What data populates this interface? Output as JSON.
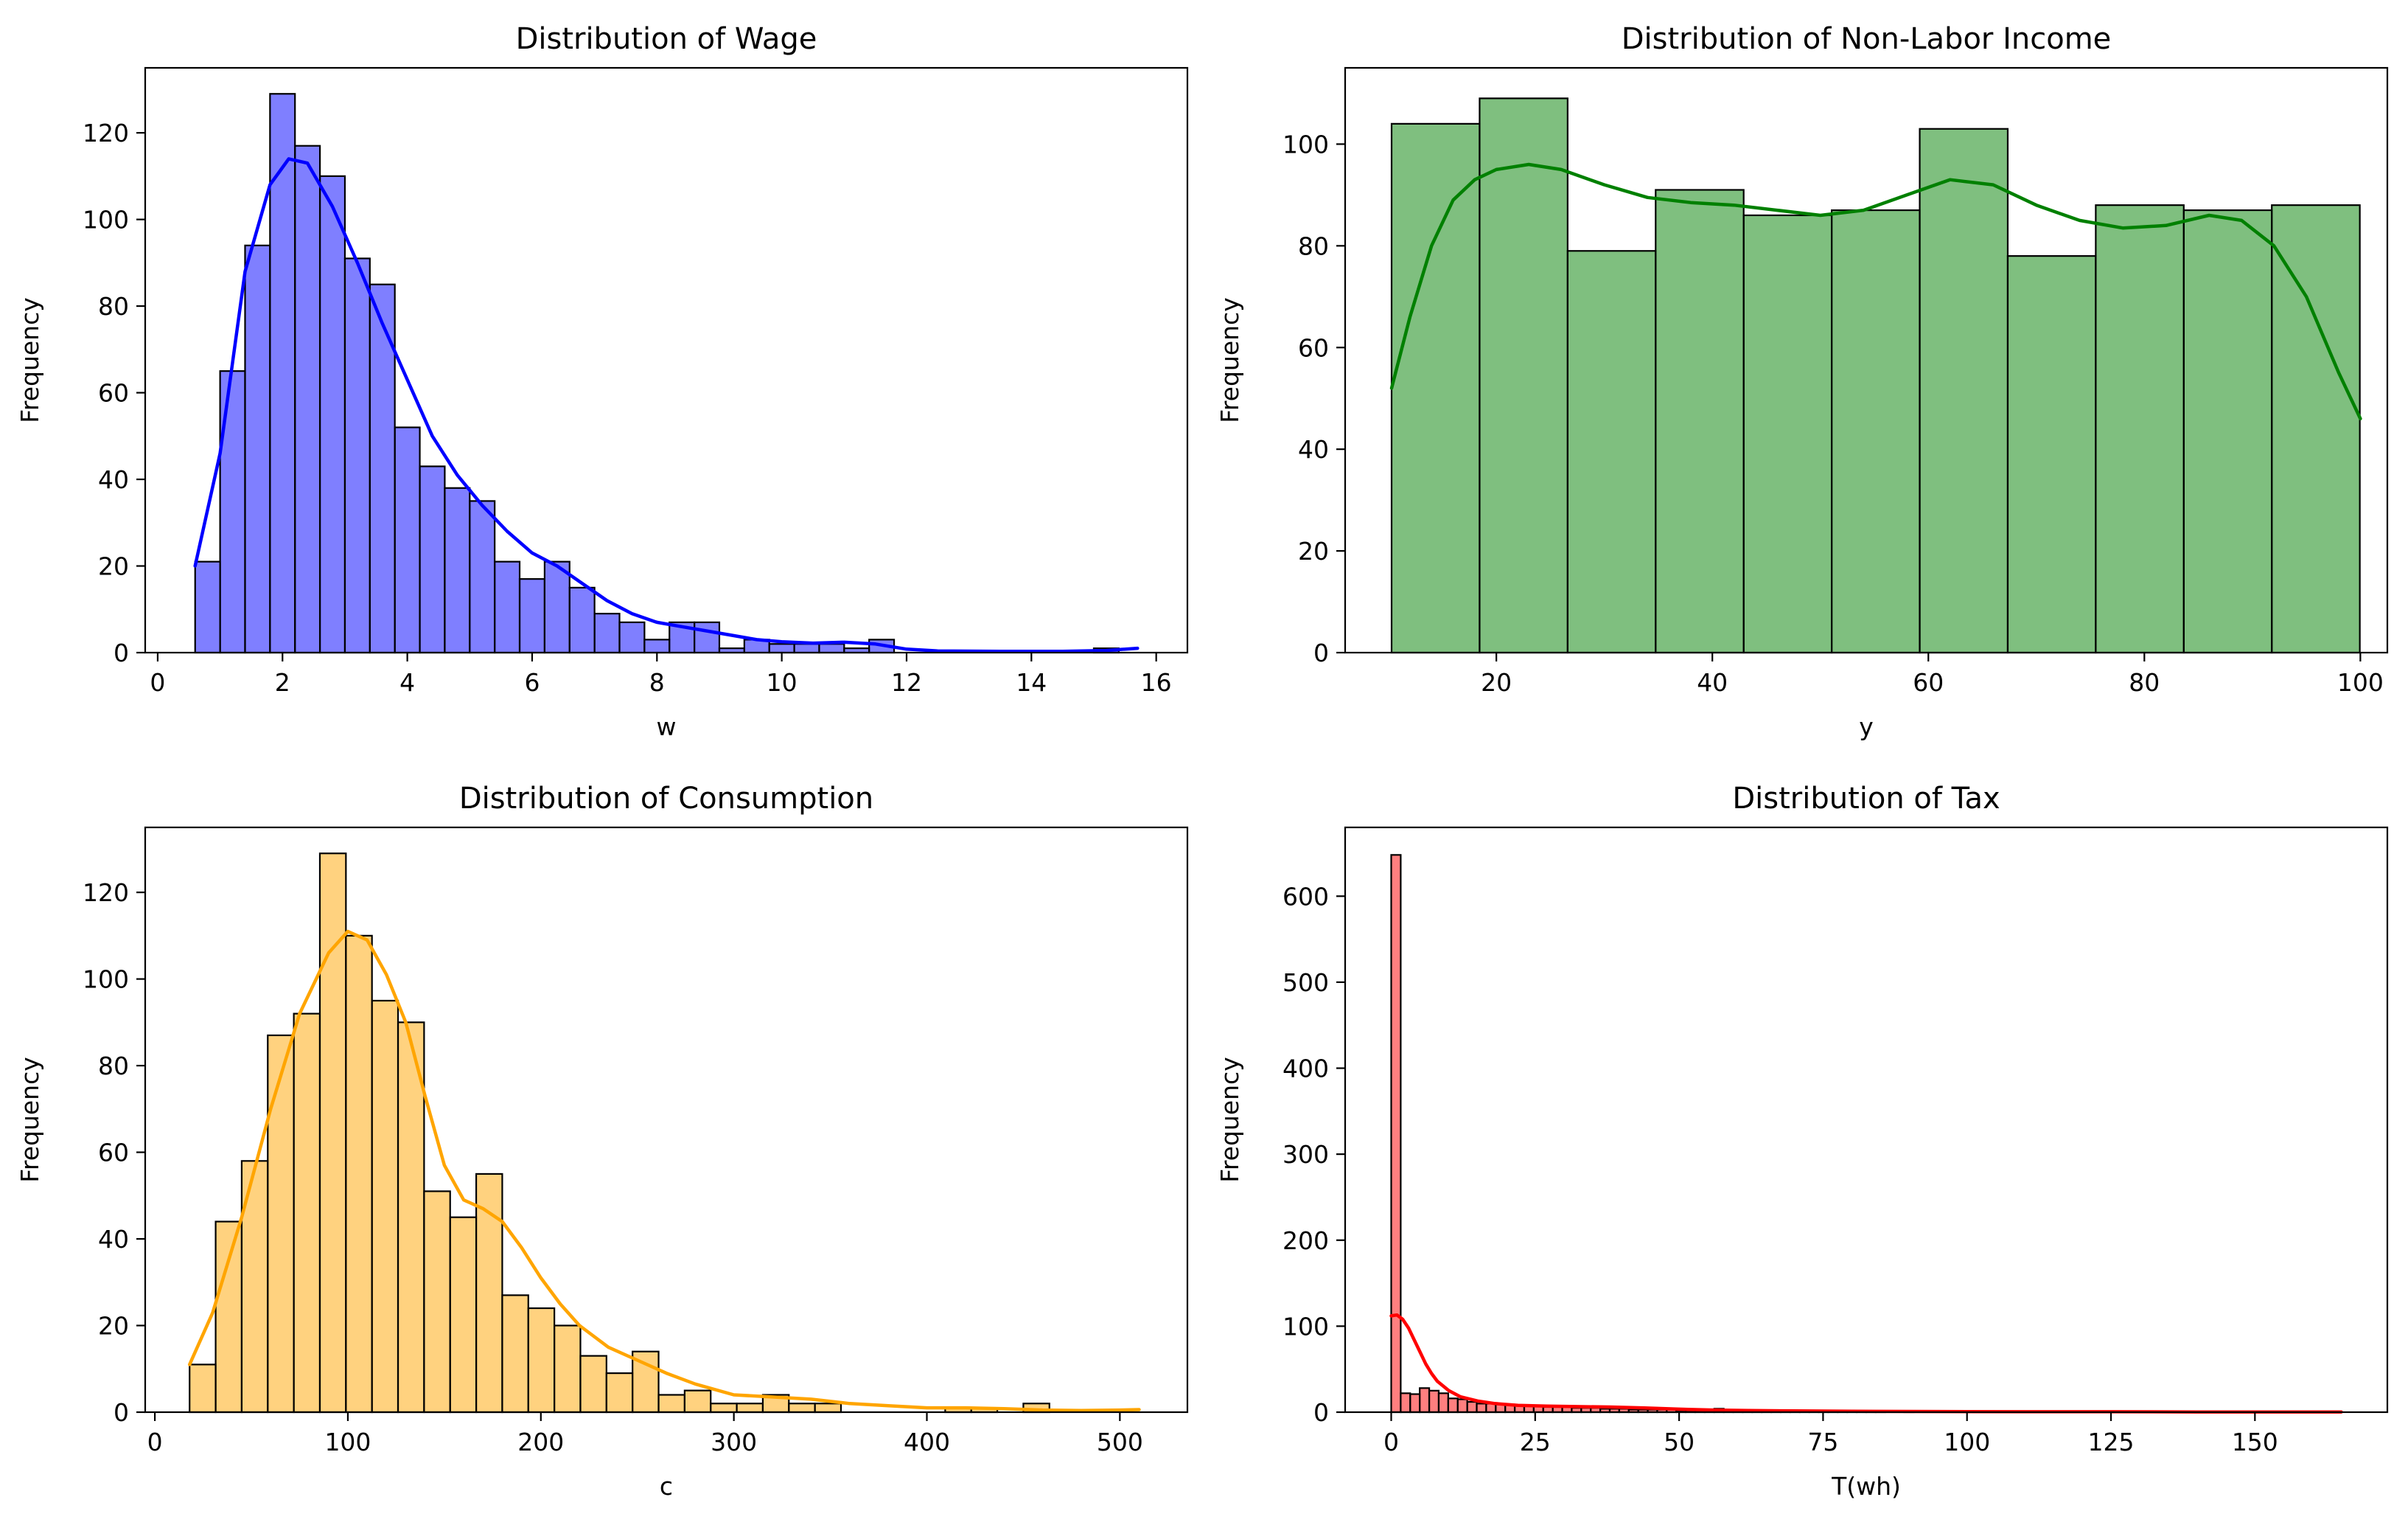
{
  "chart_data": [
    {
      "type": "bar",
      "subtype": "histogram_with_kde",
      "title": "Distribution of Wage",
      "xlabel": "w",
      "ylabel": "Frequency",
      "color": "#0000ff",
      "xlim": [
        -0.2,
        16.5
      ],
      "ylim": [
        0,
        135
      ],
      "xticks": [
        0,
        2,
        4,
        6,
        8,
        10,
        12,
        14,
        16
      ],
      "yticks": [
        0,
        20,
        40,
        60,
        80,
        100,
        120
      ],
      "bin_start": 0.6,
      "bin_width": 0.4,
      "values": [
        21,
        65,
        94,
        129,
        117,
        110,
        91,
        85,
        52,
        43,
        38,
        35,
        21,
        17,
        21,
        15,
        9,
        7,
        3,
        7,
        7,
        1,
        3,
        2,
        2,
        2,
        1,
        3,
        0,
        0,
        0,
        0,
        0,
        0,
        0,
        0,
        1
      ],
      "kde": [
        [
          0.6,
          20
        ],
        [
          1.0,
          46
        ],
        [
          1.4,
          88
        ],
        [
          1.8,
          108
        ],
        [
          2.1,
          114
        ],
        [
          2.4,
          113
        ],
        [
          2.8,
          103
        ],
        [
          3.2,
          90
        ],
        [
          3.6,
          76
        ],
        [
          4.0,
          63
        ],
        [
          4.4,
          50
        ],
        [
          4.8,
          41
        ],
        [
          5.2,
          34
        ],
        [
          5.6,
          28
        ],
        [
          6.0,
          23
        ],
        [
          6.4,
          20
        ],
        [
          6.8,
          16
        ],
        [
          7.2,
          12
        ],
        [
          7.6,
          9
        ],
        [
          8.0,
          7
        ],
        [
          8.4,
          6
        ],
        [
          8.8,
          5
        ],
        [
          9.2,
          4
        ],
        [
          9.6,
          3
        ],
        [
          10.0,
          2.5
        ],
        [
          10.5,
          2.2
        ],
        [
          11.0,
          2.4
        ],
        [
          11.5,
          2
        ],
        [
          12.0,
          0.8
        ],
        [
          12.5,
          0.4
        ],
        [
          13.5,
          0.3
        ],
        [
          14.5,
          0.3
        ],
        [
          15.2,
          0.5
        ],
        [
          15.7,
          1
        ]
      ]
    },
    {
      "type": "bar",
      "subtype": "histogram_with_kde",
      "title": "Distribution of Non-Labor Income",
      "xlabel": "y",
      "ylabel": "Frequency",
      "color": "#008000",
      "xlim": [
        6,
        102.5
      ],
      "ylim": [
        0,
        115
      ],
      "xticks": [
        20,
        40,
        60,
        80,
        100
      ],
      "yticks": [
        0,
        20,
        40,
        60,
        80,
        100
      ],
      "bin_start": 10.3,
      "bin_width": 8.15,
      "values": [
        104,
        109,
        79,
        91,
        86,
        87,
        103,
        78,
        88,
        87,
        88
      ],
      "kde": [
        [
          10.3,
          52
        ],
        [
          12,
          66
        ],
        [
          14,
          80
        ],
        [
          16,
          89
        ],
        [
          18,
          93
        ],
        [
          20,
          95
        ],
        [
          23,
          96
        ],
        [
          26,
          95
        ],
        [
          30,
          92
        ],
        [
          34,
          89.5
        ],
        [
          38,
          88.5
        ],
        [
          42,
          88
        ],
        [
          46,
          87
        ],
        [
          50,
          86
        ],
        [
          54,
          87
        ],
        [
          58,
          90
        ],
        [
          62,
          93
        ],
        [
          66,
          92
        ],
        [
          70,
          88
        ],
        [
          74,
          85
        ],
        [
          78,
          83.5
        ],
        [
          82,
          84
        ],
        [
          86,
          86
        ],
        [
          89,
          85
        ],
        [
          92,
          80
        ],
        [
          95,
          70
        ],
        [
          98,
          55
        ],
        [
          100,
          46
        ]
      ]
    },
    {
      "type": "bar",
      "subtype": "histogram_with_kde",
      "title": "Distribution of Consumption",
      "xlabel": "c",
      "ylabel": "Frequency",
      "color": "#ffa500",
      "xlim": [
        -5,
        535
      ],
      "ylim": [
        0,
        135
      ],
      "xticks": [
        0,
        100,
        200,
        300,
        400,
        500
      ],
      "yticks": [
        0,
        20,
        40,
        60,
        80,
        100,
        120
      ],
      "bin_start": 18,
      "bin_width": 13.5,
      "values": [
        11,
        44,
        58,
        87,
        92,
        129,
        110,
        95,
        90,
        51,
        45,
        55,
        27,
        24,
        20,
        13,
        9,
        14,
        4,
        5,
        2,
        2,
        4,
        2,
        2,
        0,
        0,
        0,
        0,
        1,
        1,
        0,
        2,
        0,
        0,
        0,
        0
      ],
      "kde": [
        [
          18,
          11
        ],
        [
          30,
          23
        ],
        [
          45,
          45
        ],
        [
          60,
          70
        ],
        [
          75,
          92
        ],
        [
          90,
          106
        ],
        [
          100,
          111
        ],
        [
          110,
          109
        ],
        [
          120,
          101
        ],
        [
          130,
          90
        ],
        [
          140,
          73
        ],
        [
          150,
          57
        ],
        [
          160,
          49
        ],
        [
          170,
          47
        ],
        [
          180,
          44
        ],
        [
          190,
          38
        ],
        [
          200,
          31
        ],
        [
          210,
          25
        ],
        [
          220,
          20
        ],
        [
          235,
          15
        ],
        [
          250,
          12
        ],
        [
          265,
          9
        ],
        [
          280,
          6.5
        ],
        [
          300,
          4
        ],
        [
          320,
          3.5
        ],
        [
          340,
          3
        ],
        [
          360,
          2
        ],
        [
          380,
          1.5
        ],
        [
          400,
          1
        ],
        [
          420,
          1
        ],
        [
          440,
          0.8
        ],
        [
          460,
          0.5
        ],
        [
          480,
          0.4
        ],
        [
          500,
          0.5
        ],
        [
          510,
          0.6
        ]
      ]
    },
    {
      "type": "bar",
      "subtype": "histogram_with_kde",
      "title": "Distribution of Tax",
      "xlabel": "T(wh)",
      "ylabel": "Frequency",
      "color": "#ff0000",
      "xlim": [
        -8,
        173
      ],
      "ylim": [
        0,
        680
      ],
      "xticks": [
        0,
        25,
        50,
        75,
        100,
        125,
        150
      ],
      "yticks": [
        0,
        100,
        200,
        300,
        400,
        500,
        600
      ],
      "bin_start": 0,
      "bin_width": 1.65,
      "values": [
        648,
        22,
        21,
        28,
        25,
        22,
        16,
        15,
        12,
        10,
        10,
        9,
        9,
        8,
        7,
        7,
        6,
        6,
        6,
        5,
        5,
        5,
        4,
        4,
        4,
        3,
        3,
        3,
        3,
        3,
        2,
        2,
        2,
        3,
        4,
        2,
        2,
        2,
        1,
        1,
        1,
        1,
        1,
        1,
        1,
        1,
        1,
        1,
        1,
        1,
        1,
        1,
        0,
        0,
        1,
        0,
        0,
        0,
        0,
        0,
        1,
        0,
        0,
        0,
        0,
        0,
        0,
        0,
        0,
        0,
        0,
        0,
        0,
        0,
        0,
        0,
        0,
        0,
        0,
        0,
        0,
        0,
        0,
        0,
        0,
        0,
        0,
        0,
        0,
        0,
        0,
        0,
        0,
        0,
        0,
        0,
        0,
        0,
        0,
        0
      ],
      "kde": [
        [
          0,
          112
        ],
        [
          1,
          113
        ],
        [
          2,
          108
        ],
        [
          3,
          98
        ],
        [
          4,
          84
        ],
        [
          5,
          70
        ],
        [
          6,
          56
        ],
        [
          7,
          45
        ],
        [
          8,
          36
        ],
        [
          10,
          25
        ],
        [
          12,
          18
        ],
        [
          15,
          13
        ],
        [
          18,
          10
        ],
        [
          22,
          8
        ],
        [
          27,
          7
        ],
        [
          32,
          6.5
        ],
        [
          38,
          6
        ],
        [
          44,
          5
        ],
        [
          50,
          3.5
        ],
        [
          56,
          2.5
        ],
        [
          62,
          2
        ],
        [
          70,
          1.5
        ],
        [
          80,
          1
        ],
        [
          95,
          0.8
        ],
        [
          110,
          0.5
        ],
        [
          125,
          0.5
        ],
        [
          140,
          0.3
        ],
        [
          155,
          0.3
        ],
        [
          165,
          0.3
        ]
      ]
    }
  ]
}
